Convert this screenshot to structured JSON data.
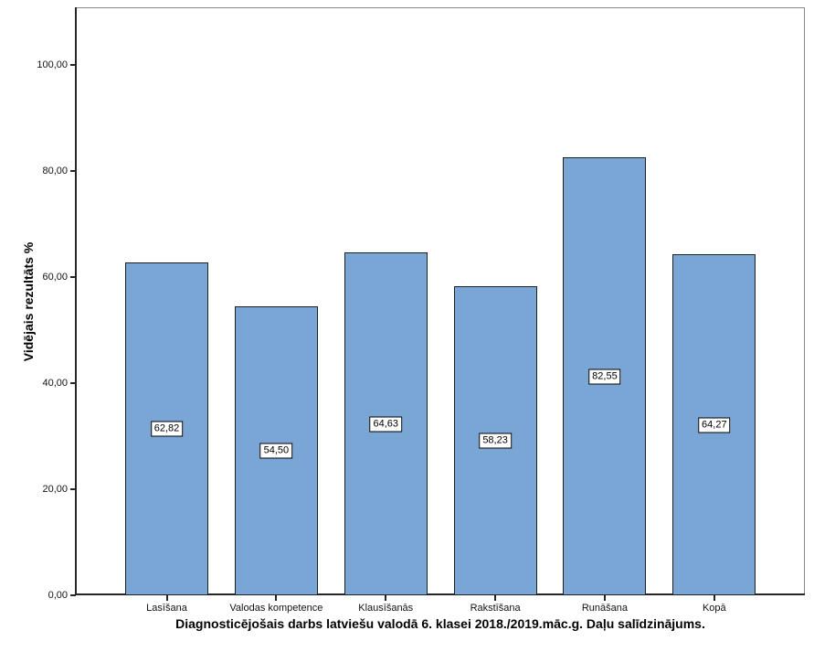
{
  "chart_data": {
    "type": "bar",
    "title": "Diagnosticējošais darbs latviešu valodā 6. klasei 2018./2019.māc.g. Daļu salīdzinājums.",
    "ylabel": "Vidējais rezultāts %",
    "xlabel": "",
    "categories": [
      "Lasīšana",
      "Valodas kompetence",
      "Klausīšanās",
      "Rakstīšana",
      "Runāšana",
      "Kopā"
    ],
    "values": [
      62.82,
      54.5,
      64.63,
      58.23,
      82.55,
      64.27
    ],
    "value_labels": [
      "62,82",
      "54,50",
      "64,63",
      "58,23",
      "82,55",
      "64,27"
    ],
    "y_tick_values": [
      0,
      20,
      40,
      60,
      80,
      100
    ],
    "y_tick_labels": [
      "0,00",
      "20,00",
      "40,00",
      "60,00",
      "80,00",
      "100,00"
    ],
    "ylim": [
      0,
      110.9
    ],
    "grid": false,
    "legend": null,
    "colors": {
      "bar_fill": "#7aa6d6",
      "bar_border": "#1f1f1f",
      "frame": "#8a8a8a",
      "axis": "#262626",
      "background": "#ffffff"
    }
  }
}
